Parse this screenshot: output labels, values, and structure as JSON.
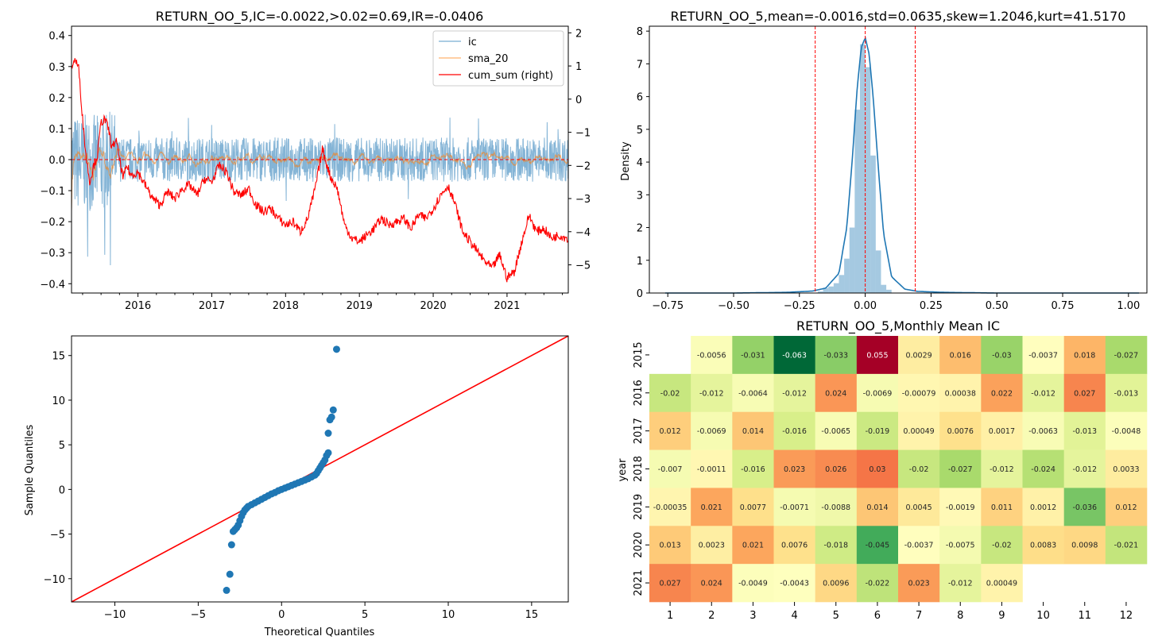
{
  "ic_panel": {
    "title": "RETURN_OO_5,IC=-0.0022,>0.02=0.69,IR=-0.0406",
    "left_yticks": [
      -0.4,
      -0.3,
      -0.2,
      -0.1,
      0.0,
      0.1,
      0.2,
      0.3,
      0.4
    ],
    "right_yticks": [
      -5,
      -4,
      -3,
      -2,
      -1,
      0,
      1,
      2
    ],
    "xticks": [
      "2016",
      "2017",
      "2018",
      "2019",
      "2020",
      "2021"
    ],
    "legend": [
      "ic",
      "sma_20",
      "cum_sum (right)"
    ],
    "colors": {
      "ic": "#1f77b4",
      "sma": "#ff7f0e",
      "cum": "#ff0000"
    }
  },
  "hist_panel": {
    "title": "RETURN_OO_5,mean=-0.0016,std=0.0635,skew=1.2046,kurt=41.5170",
    "ylabel": "Density",
    "xticks": [
      "−0.75",
      "−0.50",
      "−0.25",
      "0.00",
      "0.25",
      "0.50",
      "0.75",
      "1.00"
    ],
    "yticks": [
      "0",
      "1",
      "2",
      "3",
      "4",
      "5",
      "6",
      "7",
      "8"
    ],
    "vlines": [
      -0.19,
      0.0,
      0.19
    ]
  },
  "qq_panel": {
    "xlabel": "Theoretical Quantiles",
    "ylabel": "Sample Quantiles",
    "xticks": [
      "−10",
      "−5",
      "0",
      "5",
      "10",
      "15"
    ],
    "yticks": [
      "−10",
      "−5",
      "0",
      "5",
      "10",
      "15"
    ]
  },
  "heatmap_panel": {
    "title": "RETURN_OO_5,Monthly Mean IC",
    "ylabel": "year",
    "years": [
      "2015",
      "2016",
      "2017",
      "2018",
      "2019",
      "2020",
      "2021"
    ],
    "months": [
      "1",
      "2",
      "3",
      "4",
      "5",
      "6",
      "7",
      "8",
      "9",
      "10",
      "11",
      "12"
    ]
  },
  "chart_data": [
    {
      "type": "line",
      "title": "RETURN_OO_5,IC=-0.0022,>0.02=0.69,IR=-0.0406",
      "x_range": [
        2015.1,
        2021.83
      ],
      "ylim": [
        -0.43,
        0.43
      ],
      "ylim_right": [
        -5.85,
        2.2
      ],
      "series": [
        {
          "name": "ic",
          "axis": "left",
          "description": "daily IC, oscillating roughly between -0.3 and 0.2"
        },
        {
          "name": "sma_20",
          "axis": "left",
          "description": "20-day moving average of IC"
        },
        {
          "name": "cum_sum (right)",
          "axis": "right",
          "x": [
            2015.1,
            2015.15,
            2015.2,
            2015.25,
            2015.3,
            2015.35,
            2015.4,
            2015.45,
            2015.5,
            2015.55,
            2015.6,
            2015.65,
            2015.7,
            2015.75,
            2015.8,
            2015.85,
            2015.9,
            2016.0,
            2016.1,
            2016.2,
            2016.3,
            2016.4,
            2016.5,
            2016.6,
            2016.7,
            2016.8,
            2016.9,
            2017.0,
            2017.1,
            2017.2,
            2017.3,
            2017.4,
            2017.5,
            2017.6,
            2017.7,
            2017.8,
            2017.9,
            2018.0,
            2018.1,
            2018.2,
            2018.3,
            2018.4,
            2018.5,
            2018.6,
            2018.7,
            2018.8,
            2018.9,
            2019.0,
            2019.1,
            2019.2,
            2019.3,
            2019.4,
            2019.5,
            2019.6,
            2019.7,
            2019.8,
            2019.9,
            2020.0,
            2020.1,
            2020.2,
            2020.3,
            2020.4,
            2020.5,
            2020.6,
            2020.7,
            2020.8,
            2020.9,
            2021.0,
            2021.1,
            2021.2,
            2021.3,
            2021.4,
            2021.5,
            2021.6,
            2021.7,
            2021.83
          ],
          "y": [
            1.0,
            1.2,
            0.9,
            -0.6,
            -1.8,
            -2.5,
            -2.0,
            -1.7,
            -0.7,
            -0.6,
            -0.9,
            -1.5,
            -1.2,
            -1.8,
            -2.4,
            -2.0,
            -2.3,
            -2.2,
            -2.6,
            -3.0,
            -3.2,
            -2.8,
            -3.0,
            -2.7,
            -2.6,
            -2.9,
            -2.4,
            -2.5,
            -2.0,
            -2.2,
            -2.8,
            -2.9,
            -2.7,
            -3.2,
            -3.4,
            -3.3,
            -3.6,
            -3.8,
            -3.7,
            -4.0,
            -3.6,
            -2.7,
            -1.5,
            -2.3,
            -2.7,
            -3.8,
            -4.2,
            -4.3,
            -4.1,
            -3.9,
            -3.6,
            -3.8,
            -3.7,
            -3.6,
            -3.9,
            -3.5,
            -3.6,
            -3.3,
            -2.9,
            -2.6,
            -3.2,
            -4.0,
            -4.3,
            -4.6,
            -4.9,
            -5.1,
            -4.7,
            -5.4,
            -5.2,
            -4.3,
            -3.5,
            -4.0,
            -3.9,
            -4.2,
            -4.1,
            -4.2
          ]
        }
      ]
    },
    {
      "type": "bar",
      "title": "RETURN_OO_5,mean=-0.0016,std=0.0635,skew=1.2046,kurt=41.5170",
      "ylabel": "Density",
      "xlim": [
        -0.82,
        1.07
      ],
      "ylim": [
        0,
        8.15
      ],
      "bins": [
        -0.18,
        -0.16,
        -0.14,
        -0.12,
        -0.1,
        -0.08,
        -0.06,
        -0.04,
        -0.02,
        0.0,
        0.02,
        0.04,
        0.06,
        0.08
      ],
      "bin_width": 0.02,
      "density": [
        0.05,
        0.15,
        0.2,
        0.3,
        0.55,
        1.05,
        2.0,
        5.6,
        7.6,
        6.9,
        4.2,
        1.3,
        0.25,
        0.1
      ],
      "kde": {
        "x": [
          -0.76,
          -0.5,
          -0.3,
          -0.2,
          -0.15,
          -0.1,
          -0.07,
          -0.05,
          -0.03,
          -0.015,
          0.0,
          0.015,
          0.03,
          0.05,
          0.07,
          0.1,
          0.15,
          0.2,
          0.3,
          0.5,
          1.04
        ],
        "y": [
          0.0,
          0.0,
          0.02,
          0.06,
          0.15,
          0.6,
          2.0,
          4.0,
          6.3,
          7.5,
          7.8,
          7.3,
          6.0,
          3.8,
          1.8,
          0.5,
          0.12,
          0.05,
          0.02,
          0.0,
          0.0
        ]
      },
      "vlines": [
        -0.19,
        0.0,
        0.19
      ]
    },
    {
      "type": "scatter",
      "xlabel": "Theoretical Quantiles",
      "ylabel": "Sample Quantiles",
      "xlim": [
        -12.6,
        17.2
      ],
      "ylim": [
        -12.6,
        17.2
      ],
      "reference_line": "y = x",
      "points": [
        [
          -3.3,
          -11.3
        ],
        [
          -3.1,
          -9.5
        ],
        [
          -3.0,
          -6.2
        ],
        [
          -2.9,
          -4.7
        ],
        [
          -2.8,
          -4.5
        ],
        [
          -2.7,
          -4.3
        ],
        [
          -2.6,
          -4.0
        ],
        [
          -2.5,
          -3.5
        ],
        [
          -2.4,
          -3.0
        ],
        [
          -2.3,
          -2.6
        ],
        [
          -2.2,
          -2.3
        ],
        [
          -2.1,
          -2.1
        ],
        [
          -2.0,
          -1.9
        ],
        [
          -1.8,
          -1.7
        ],
        [
          -1.6,
          -1.5
        ],
        [
          -1.4,
          -1.3
        ],
        [
          -1.2,
          -1.1
        ],
        [
          -1.0,
          -0.9
        ],
        [
          -0.8,
          -0.7
        ],
        [
          -0.6,
          -0.5
        ],
        [
          -0.4,
          -0.35
        ],
        [
          -0.2,
          -0.15
        ],
        [
          0.0,
          0.0
        ],
        [
          0.2,
          0.15
        ],
        [
          0.4,
          0.3
        ],
        [
          0.6,
          0.45
        ],
        [
          0.8,
          0.6
        ],
        [
          1.0,
          0.75
        ],
        [
          1.2,
          0.9
        ],
        [
          1.4,
          1.05
        ],
        [
          1.6,
          1.2
        ],
        [
          1.8,
          1.4
        ],
        [
          2.0,
          1.6
        ],
        [
          2.1,
          1.8
        ],
        [
          2.2,
          2.1
        ],
        [
          2.3,
          2.4
        ],
        [
          2.4,
          2.7
        ],
        [
          2.5,
          3.0
        ],
        [
          2.6,
          3.3
        ],
        [
          2.7,
          3.8
        ],
        [
          2.8,
          4.1
        ],
        [
          2.8,
          6.3
        ],
        [
          2.9,
          7.8
        ],
        [
          3.0,
          8.1
        ],
        [
          3.1,
          8.9
        ],
        [
          3.3,
          15.7
        ]
      ]
    },
    {
      "type": "heatmap",
      "title": "RETURN_OO_5,Monthly Mean IC",
      "xlabel": "",
      "ylabel": "year",
      "color_range": [
        -0.063,
        0.055
      ],
      "colormap": "RdYlGn_r",
      "rows": [
        "2015",
        "2016",
        "2017",
        "2018",
        "2019",
        "2020",
        "2021"
      ],
      "cols": [
        "1",
        "2",
        "3",
        "4",
        "5",
        "6",
        "7",
        "8",
        "9",
        "10",
        "11",
        "12"
      ],
      "values": [
        [
          null,
          -0.0056,
          -0.031,
          -0.063,
          -0.033,
          0.055,
          0.0029,
          0.016,
          -0.03,
          -0.0037,
          0.018,
          -0.027
        ],
        [
          -0.02,
          -0.012,
          -0.0064,
          -0.012,
          0.024,
          -0.0069,
          -0.00079,
          0.00038,
          0.022,
          -0.012,
          0.027,
          -0.013
        ],
        [
          0.012,
          -0.0069,
          0.014,
          -0.016,
          -0.0065,
          -0.019,
          0.00049,
          0.0076,
          0.0017,
          -0.0063,
          -0.013,
          -0.0048
        ],
        [
          -0.007,
          -0.0011,
          -0.016,
          0.023,
          0.026,
          0.03,
          -0.02,
          -0.027,
          -0.012,
          -0.024,
          -0.012,
          0.0033
        ],
        [
          -0.00035,
          0.021,
          0.0077,
          -0.0071,
          -0.0088,
          0.014,
          0.0045,
          -0.0019,
          0.011,
          0.0012,
          -0.036,
          0.012
        ],
        [
          0.013,
          0.0023,
          0.021,
          0.0076,
          -0.018,
          -0.045,
          -0.0037,
          -0.0075,
          -0.02,
          0.0083,
          0.0098,
          -0.021
        ],
        [
          0.027,
          0.024,
          -0.0049,
          -0.0043,
          0.0096,
          -0.022,
          0.023,
          -0.012,
          0.00049,
          null,
          null,
          null
        ]
      ]
    }
  ]
}
